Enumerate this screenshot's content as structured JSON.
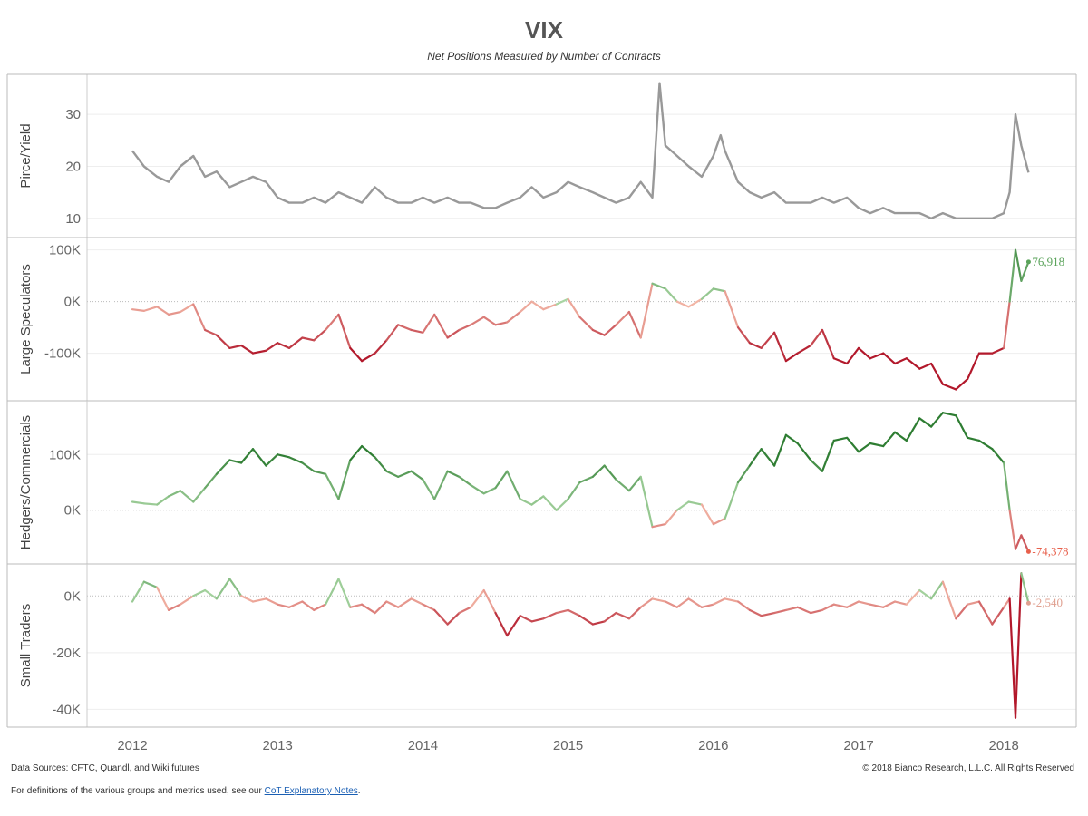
{
  "title": "VIX",
  "subtitle": "Net Positions Measured by Number of Contracts",
  "footer": {
    "sources": "Data Sources: CFTC, Quandl, and Wiki futures",
    "copyright": "© 2018 Bianco Research, L.L.C. All Rights Reserved",
    "note_prefix": "For definitions of the various groups and metrics used, see our ",
    "note_link": "CoT Explanatory Notes",
    "note_suffix": "."
  },
  "colors": {
    "price_line": "#999999",
    "positive_strong": "#2e7d32",
    "positive_light": "#a8d5a2",
    "negative_light": "#f4b9a8",
    "negative_strong": "#b2182b",
    "end_label_positive": "#5aa35a",
    "end_label_negative": "#e8604c",
    "end_label_neutral": "#e0a090"
  },
  "chart_data": {
    "type": "line",
    "x_axis": {
      "ticks": [
        "2012",
        "2013",
        "2014",
        "2015",
        "2016",
        "2017",
        "2018"
      ],
      "range": [
        2012.0,
        2018.3
      ]
    },
    "panels": [
      {
        "name": "price",
        "ylabel": "Pirce/Yield",
        "ylim": [
          7,
          37
        ],
        "yticks": [
          {
            "v": 10,
            "label": "10"
          },
          {
            "v": 20,
            "label": "20"
          },
          {
            "v": 30,
            "label": "30"
          }
        ],
        "color_mode": "solid",
        "x": [
          2012.0,
          2012.08,
          2012.17,
          2012.25,
          2012.33,
          2012.42,
          2012.5,
          2012.58,
          2012.67,
          2012.75,
          2012.83,
          2012.92,
          2013.0,
          2013.08,
          2013.17,
          2013.25,
          2013.33,
          2013.42,
          2013.5,
          2013.58,
          2013.67,
          2013.75,
          2013.83,
          2013.92,
          2014.0,
          2014.08,
          2014.17,
          2014.25,
          2014.33,
          2014.42,
          2014.5,
          2014.58,
          2014.67,
          2014.75,
          2014.83,
          2014.92,
          2015.0,
          2015.08,
          2015.17,
          2015.25,
          2015.33,
          2015.42,
          2015.5,
          2015.58,
          2015.63,
          2015.67,
          2015.75,
          2015.83,
          2015.92,
          2016.0,
          2016.05,
          2016.08,
          2016.17,
          2016.25,
          2016.33,
          2016.42,
          2016.5,
          2016.58,
          2016.67,
          2016.75,
          2016.83,
          2016.92,
          2017.0,
          2017.08,
          2017.17,
          2017.25,
          2017.33,
          2017.42,
          2017.5,
          2017.58,
          2017.67,
          2017.75,
          2017.83,
          2017.92,
          2018.0,
          2018.04,
          2018.08,
          2018.12,
          2018.17
        ],
        "values": [
          23,
          20,
          18,
          17,
          20,
          22,
          18,
          19,
          16,
          17,
          18,
          17,
          14,
          13,
          13,
          14,
          13,
          15,
          14,
          13,
          16,
          14,
          13,
          13,
          14,
          13,
          14,
          13,
          13,
          12,
          12,
          13,
          14,
          16,
          14,
          15,
          17,
          16,
          15,
          14,
          13,
          14,
          17,
          14,
          36,
          24,
          22,
          20,
          18,
          22,
          26,
          23,
          17,
          15,
          14,
          15,
          13,
          13,
          13,
          14,
          13,
          14,
          12,
          11,
          12,
          11,
          11,
          11,
          10,
          11,
          10,
          10,
          10,
          10,
          11,
          15,
          30,
          24,
          18.8
        ]
      },
      {
        "name": "large_speculators",
        "ylabel": "Large Speculators",
        "ylim": [
          -185000,
          117000
        ],
        "yticks": [
          {
            "v": 100000,
            "label": "100K"
          },
          {
            "v": 0,
            "label": "0K"
          },
          {
            "v": -100000,
            "label": "-100K"
          }
        ],
        "dotted_zero": true,
        "color_mode": "diverging",
        "color_scale": 100000,
        "end_label": "76,918",
        "end_color": "positive",
        "x": [
          2012.0,
          2012.08,
          2012.17,
          2012.25,
          2012.33,
          2012.42,
          2012.5,
          2012.58,
          2012.67,
          2012.75,
          2012.83,
          2012.92,
          2013.0,
          2013.08,
          2013.17,
          2013.25,
          2013.33,
          2013.42,
          2013.5,
          2013.58,
          2013.67,
          2013.75,
          2013.83,
          2013.92,
          2014.0,
          2014.08,
          2014.17,
          2014.25,
          2014.33,
          2014.42,
          2014.5,
          2014.58,
          2014.67,
          2014.75,
          2014.83,
          2014.92,
          2015.0,
          2015.08,
          2015.17,
          2015.25,
          2015.33,
          2015.42,
          2015.5,
          2015.58,
          2015.67,
          2015.75,
          2015.83,
          2015.92,
          2016.0,
          2016.08,
          2016.17,
          2016.25,
          2016.33,
          2016.42,
          2016.5,
          2016.58,
          2016.67,
          2016.75,
          2016.83,
          2016.92,
          2017.0,
          2017.08,
          2017.17,
          2017.25,
          2017.33,
          2017.42,
          2017.5,
          2017.58,
          2017.67,
          2017.75,
          2017.83,
          2017.92,
          2018.0,
          2018.04,
          2018.08,
          2018.12,
          2018.17
        ],
        "values": [
          -15000,
          -18000,
          -10000,
          -25000,
          -20000,
          -5000,
          -55000,
          -65000,
          -90000,
          -85000,
          -100000,
          -95000,
          -80000,
          -90000,
          -70000,
          -75000,
          -55000,
          -25000,
          -90000,
          -115000,
          -100000,
          -75000,
          -45000,
          -55000,
          -60000,
          -25000,
          -70000,
          -55000,
          -45000,
          -30000,
          -45000,
          -40000,
          -20000,
          0,
          -15000,
          -5000,
          5000,
          -30000,
          -55000,
          -65000,
          -45000,
          -20000,
          -70000,
          35000,
          25000,
          0,
          -10000,
          5000,
          25000,
          20000,
          -50000,
          -80000,
          -90000,
          -60000,
          -115000,
          -100000,
          -85000,
          -55000,
          -110000,
          -120000,
          -90000,
          -110000,
          -100000,
          -120000,
          -110000,
          -130000,
          -120000,
          -160000,
          -170000,
          -150000,
          -100000,
          -100000,
          -90000,
          0,
          100000,
          40000,
          76918
        ]
      },
      {
        "name": "hedgers_commercials",
        "ylabel": "Hedgers/Commercials",
        "ylim": [
          -90000,
          190000
        ],
        "yticks": [
          {
            "v": 100000,
            "label": "100K"
          },
          {
            "v": 0,
            "label": "0K"
          }
        ],
        "dotted_zero": true,
        "color_mode": "diverging",
        "color_scale": 100000,
        "end_label": "-74,378",
        "end_color": "negative",
        "x": [
          2012.0,
          2012.08,
          2012.17,
          2012.25,
          2012.33,
          2012.42,
          2012.5,
          2012.58,
          2012.67,
          2012.75,
          2012.83,
          2012.92,
          2013.0,
          2013.08,
          2013.17,
          2013.25,
          2013.33,
          2013.42,
          2013.5,
          2013.58,
          2013.67,
          2013.75,
          2013.83,
          2013.92,
          2014.0,
          2014.08,
          2014.17,
          2014.25,
          2014.33,
          2014.42,
          2014.5,
          2014.58,
          2014.67,
          2014.75,
          2014.83,
          2014.92,
          2015.0,
          2015.08,
          2015.17,
          2015.25,
          2015.33,
          2015.42,
          2015.5,
          2015.58,
          2015.67,
          2015.75,
          2015.83,
          2015.92,
          2016.0,
          2016.08,
          2016.17,
          2016.25,
          2016.33,
          2016.42,
          2016.5,
          2016.58,
          2016.67,
          2016.75,
          2016.83,
          2016.92,
          2017.0,
          2017.08,
          2017.17,
          2017.25,
          2017.33,
          2017.42,
          2017.5,
          2017.58,
          2017.67,
          2017.75,
          2017.83,
          2017.92,
          2018.0,
          2018.04,
          2018.08,
          2018.12,
          2018.17
        ],
        "values": [
          15000,
          12000,
          10000,
          25000,
          35000,
          15000,
          40000,
          65000,
          90000,
          85000,
          110000,
          80000,
          100000,
          95000,
          85000,
          70000,
          65000,
          20000,
          90000,
          115000,
          95000,
          70000,
          60000,
          70000,
          55000,
          20000,
          70000,
          60000,
          45000,
          30000,
          40000,
          70000,
          20000,
          10000,
          25000,
          0,
          20000,
          50000,
          60000,
          80000,
          55000,
          35000,
          60000,
          -30000,
          -25000,
          0,
          15000,
          10000,
          -25000,
          -15000,
          50000,
          80000,
          110000,
          80000,
          135000,
          120000,
          90000,
          70000,
          125000,
          130000,
          105000,
          120000,
          115000,
          140000,
          125000,
          165000,
          150000,
          175000,
          170000,
          130000,
          125000,
          110000,
          85000,
          0,
          -70000,
          -45000,
          -74378
        ]
      },
      {
        "name": "small_traders",
        "ylabel": "Small Traders",
        "ylim": [
          -45000,
          10000
        ],
        "yticks": [
          {
            "v": 0,
            "label": "0K"
          },
          {
            "v": -20000,
            "label": "-20K"
          },
          {
            "v": -40000,
            "label": "-40K"
          }
        ],
        "dotted_zero": true,
        "color_mode": "diverging",
        "color_scale": 12000,
        "end_label": "-2,540",
        "end_color": "neutral",
        "x": [
          2012.0,
          2012.08,
          2012.17,
          2012.25,
          2012.33,
          2012.42,
          2012.5,
          2012.58,
          2012.67,
          2012.75,
          2012.83,
          2012.92,
          2013.0,
          2013.08,
          2013.17,
          2013.25,
          2013.33,
          2013.42,
          2013.5,
          2013.58,
          2013.67,
          2013.75,
          2013.83,
          2013.92,
          2014.0,
          2014.08,
          2014.17,
          2014.25,
          2014.33,
          2014.42,
          2014.5,
          2014.58,
          2014.67,
          2014.75,
          2014.83,
          2014.92,
          2015.0,
          2015.08,
          2015.17,
          2015.25,
          2015.33,
          2015.42,
          2015.5,
          2015.58,
          2015.67,
          2015.75,
          2015.83,
          2015.92,
          2016.0,
          2016.08,
          2016.17,
          2016.25,
          2016.33,
          2016.42,
          2016.5,
          2016.58,
          2016.67,
          2016.75,
          2016.83,
          2016.92,
          2017.0,
          2017.08,
          2017.17,
          2017.25,
          2017.33,
          2017.42,
          2017.5,
          2017.58,
          2017.67,
          2017.75,
          2017.83,
          2017.92,
          2018.0,
          2018.04,
          2018.08,
          2018.12,
          2018.17
        ],
        "values": [
          -2000,
          5000,
          3000,
          -5000,
          -3000,
          0,
          2000,
          -1000,
          6000,
          0,
          -2000,
          -1000,
          -3000,
          -4000,
          -2000,
          -5000,
          -3000,
          6000,
          -4000,
          -3000,
          -6000,
          -2000,
          -4000,
          -1000,
          -3000,
          -5000,
          -10000,
          -6000,
          -4000,
          2000,
          -6000,
          -14000,
          -7000,
          -9000,
          -8000,
          -6000,
          -5000,
          -7000,
          -10000,
          -9000,
          -6000,
          -8000,
          -4000,
          -1000,
          -2000,
          -4000,
          -1000,
          -4000,
          -3000,
          -1000,
          -2000,
          -5000,
          -7000,
          -6000,
          -5000,
          -4000,
          -6000,
          -5000,
          -3000,
          -4000,
          -2000,
          -3000,
          -4000,
          -2000,
          -3000,
          2000,
          -1000,
          5000,
          -8000,
          -3000,
          -2000,
          -10000,
          -4000,
          -1000,
          -43000,
          8000,
          -2540
        ]
      }
    ]
  }
}
